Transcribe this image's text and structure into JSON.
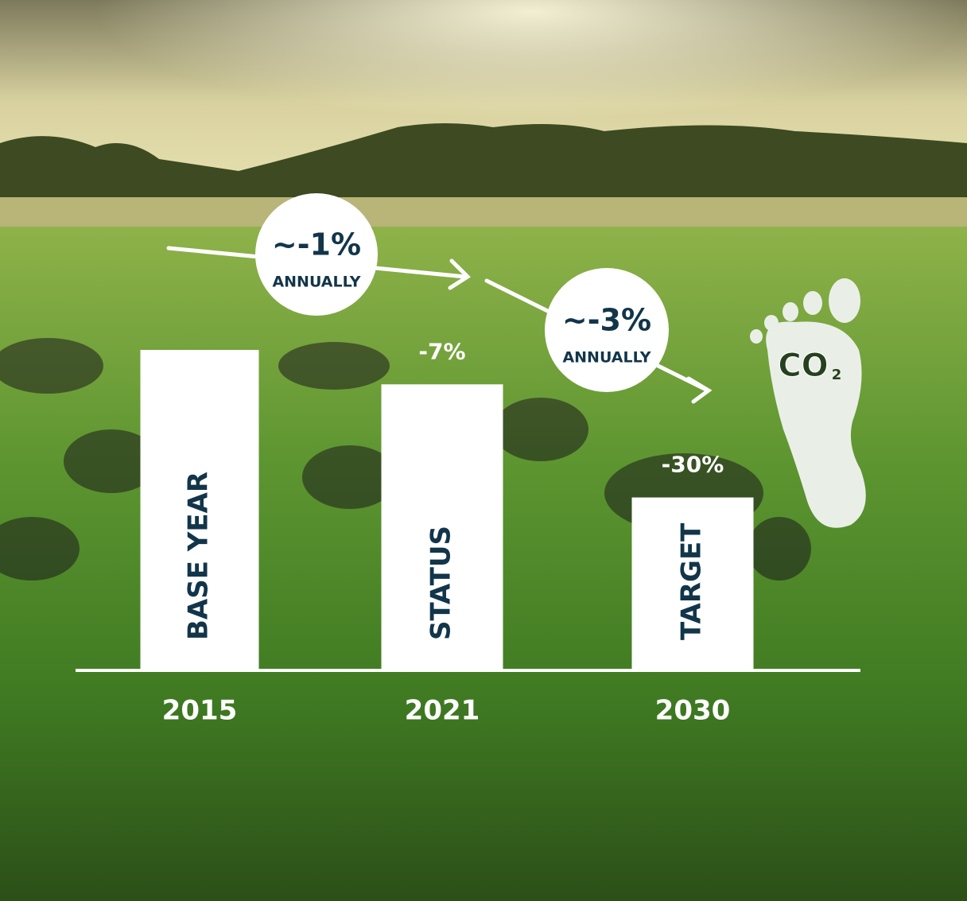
{
  "chart_data": {
    "type": "bar",
    "categories": [
      "2015",
      "2021",
      "2030"
    ],
    "bar_labels": [
      "BASE YEAR",
      "STATUS",
      "TARGET"
    ],
    "values": [
      0,
      -7,
      -30
    ],
    "value_labels": [
      null,
      "-7%",
      "-30%"
    ],
    "color": "#ffffff",
    "ylim": [
      -65,
      0
    ],
    "annotations": [
      {
        "rate": "~-1%",
        "period": "ANNUALLY"
      },
      {
        "rate": "~-3%",
        "period": "ANNUALLY"
      }
    ],
    "icon_label": "CO",
    "icon_subscript": "2"
  }
}
